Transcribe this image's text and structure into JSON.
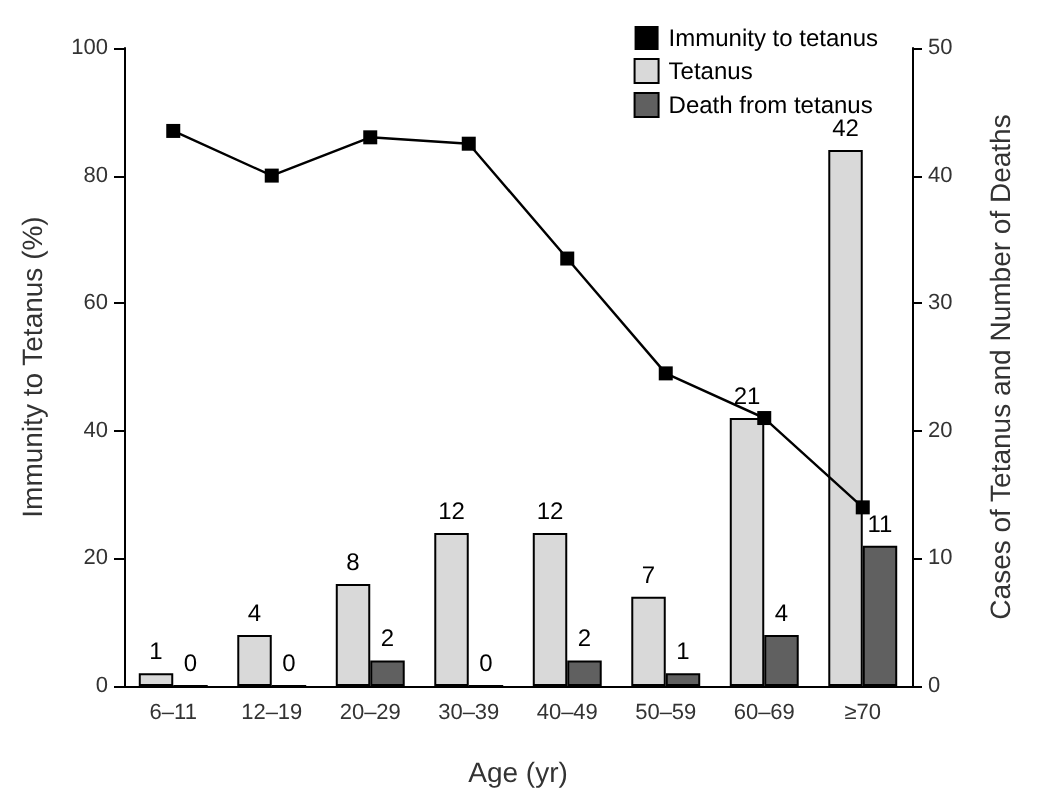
{
  "chart_data": {
    "type": "bar",
    "categories": [
      "6–11",
      "12–19",
      "20–29",
      "30–39",
      "40–49",
      "50–59",
      "60–69",
      "≥70"
    ],
    "xlabel": "Age (yr)",
    "ylabel": "Immunity to Tetanus (%)",
    "y2label": "Cases of Tetanus and Number of Deaths",
    "series": [
      {
        "name": "Immunity to tetanus",
        "type": "line",
        "color": "#000000",
        "marker": "square",
        "values": [
          87,
          80,
          86,
          85,
          67,
          49,
          42,
          28
        ]
      },
      {
        "name": "Tetanus",
        "axis": "y2",
        "color": "#d9d9d9",
        "data_labels": true,
        "values": [
          1,
          4,
          8,
          12,
          12,
          7,
          21,
          42
        ]
      },
      {
        "name": "Death from tetanus",
        "axis": "y2",
        "color": "#606060",
        "data_labels": true,
        "values": [
          0,
          0,
          2,
          0,
          2,
          1,
          4,
          11
        ]
      }
    ],
    "ylim": [
      0,
      100
    ],
    "yticks": [
      0,
      20,
      40,
      60,
      80,
      100
    ],
    "y2lim": [
      0,
      50
    ],
    "y2ticks": [
      0,
      10,
      20,
      30,
      40,
      50
    ],
    "grid": false,
    "legend": "top right"
  }
}
